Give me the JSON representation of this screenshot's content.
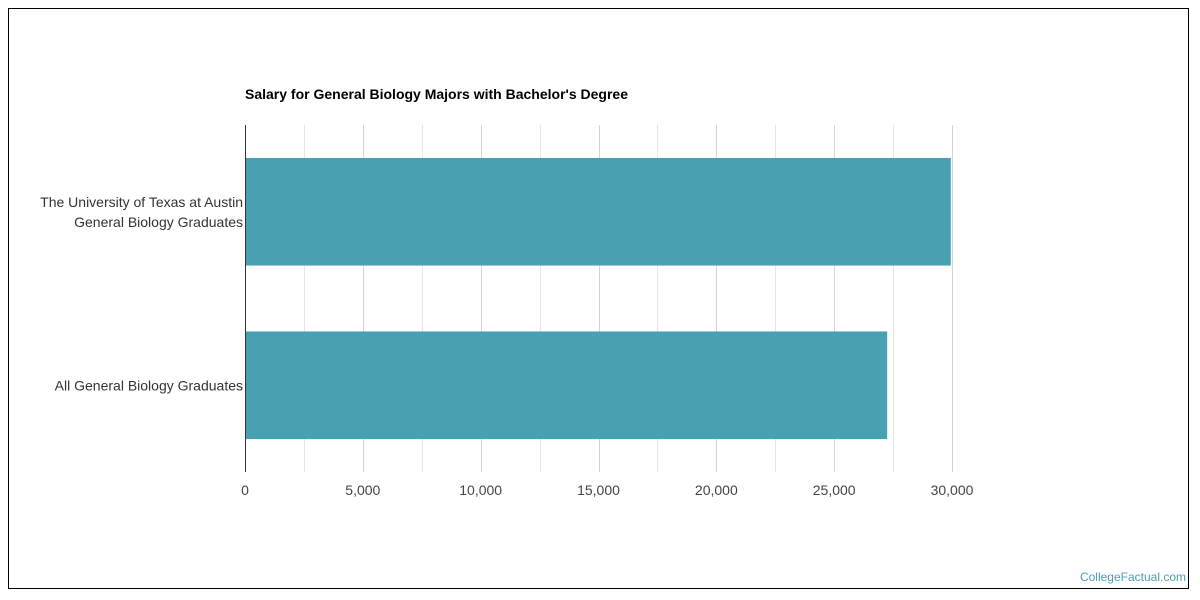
{
  "chart_data": {
    "type": "bar",
    "orientation": "horizontal",
    "title": "Salary for General Biology Majors with Bachelor's Degree",
    "categories": [
      [
        "The University of Texas at Austin",
        "General Biology Graduates"
      ],
      [
        "All General Biology Graduates"
      ]
    ],
    "values": [
      29950,
      27250
    ],
    "xlim": [
      0,
      30000
    ],
    "xticks": [
      0,
      5000,
      10000,
      15000,
      20000,
      25000,
      30000
    ],
    "xtick_labels": [
      "0",
      "5,000",
      "10,000",
      "15,000",
      "20,000",
      "25,000",
      "30,000"
    ],
    "grid": true,
    "bar_color": "#4aa0b3",
    "grid_color": "#e6e6e6",
    "axis_color": "#333333"
  },
  "watermark": {
    "text": "CollegeFactual.com",
    "color": "#4aa0b3"
  }
}
